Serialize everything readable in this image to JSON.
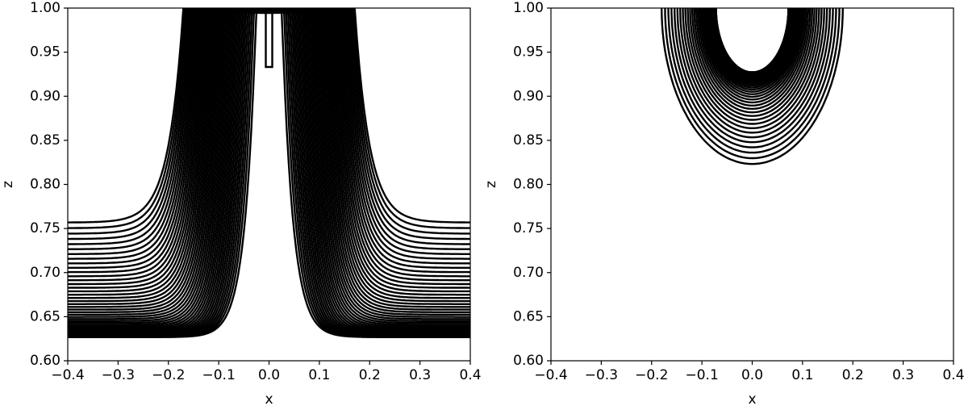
{
  "chart_data": [
    {
      "type": "contour",
      "xlabel": "x",
      "ylabel": "z",
      "shape": "channel",
      "xlim": [
        -0.4,
        0.4
      ],
      "ylim": [
        0.6,
        1.0
      ],
      "xticks": [
        {
          "value": -0.4,
          "label": "−0.4"
        },
        {
          "value": -0.3,
          "label": "−0.3"
        },
        {
          "value": -0.2,
          "label": "−0.2"
        },
        {
          "value": -0.1,
          "label": "−0.1"
        },
        {
          "value": 0,
          "label": "0.0"
        },
        0.1,
        0.2,
        0.3,
        0.4
      ],
      "yticks": [
        {
          "value": 0.6,
          "label": "0.60"
        },
        0.65,
        {
          "value": 0.7,
          "label": "0.70"
        },
        0.75,
        {
          "value": 0.8,
          "label": "0.80"
        },
        0.85,
        {
          "value": 0.9,
          "label": "0.90"
        },
        0.95,
        {
          "value": 1.0,
          "label": "1.00"
        }
      ]
    },
    {
      "type": "contour",
      "xlabel": "x",
      "ylabel": "z",
      "shape": "bowl",
      "xlim": [
        -0.4,
        0.4
      ],
      "ylim": [
        0.6,
        1.0
      ],
      "xticks": [
        {
          "value": -0.4,
          "label": "−0.4"
        },
        {
          "value": -0.3,
          "label": "−0.3"
        },
        {
          "value": -0.2,
          "label": "−0.2"
        },
        {
          "value": -0.1,
          "label": "−0.1"
        },
        {
          "value": 0,
          "label": "0.0"
        },
        0.1,
        0.2,
        0.3,
        0.4
      ],
      "yticks": [
        {
          "value": 0.6,
          "label": "0.60"
        },
        0.65,
        {
          "value": 0.7,
          "label": "0.70"
        },
        0.75,
        {
          "value": 0.8,
          "label": "0.80"
        },
        0.85,
        {
          "value": 0.9,
          "label": "0.90"
        },
        0.95,
        {
          "value": 1.0,
          "label": "1.00"
        }
      ]
    }
  ]
}
